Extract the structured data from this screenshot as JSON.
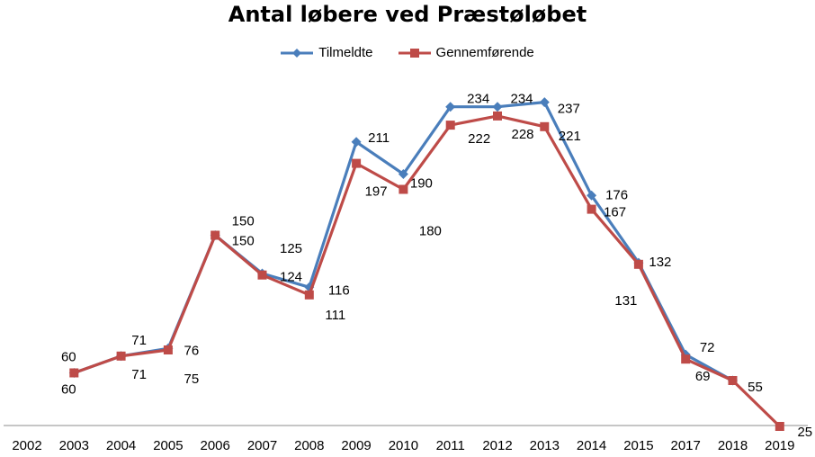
{
  "chart_data": {
    "type": "line",
    "title": "Antal løbere ved Præstøløbet",
    "categories": [
      "2002",
      "2003",
      "2004",
      "2005",
      "2006",
      "2007",
      "2008",
      "2009",
      "2010",
      "2011",
      "2012",
      "2013",
      "2014",
      "2015",
      "2017",
      "2018",
      "2019"
    ],
    "series": [
      {
        "name": "Tilmeldte",
        "color": "#4a7ebb",
        "marker": "diamond",
        "values": [
          null,
          60,
          71,
          76,
          150,
          125,
          116,
          211,
          190,
          234,
          234,
          237,
          176,
          132,
          72,
          55,
          null
        ]
      },
      {
        "name": "Gennemførende",
        "color": "#be4b48",
        "marker": "square",
        "values": [
          null,
          60,
          71,
          75,
          150,
          124,
          111,
          197,
          180,
          222,
          228,
          221,
          167,
          131,
          69,
          55,
          25
        ]
      }
    ],
    "ylim": [
      0,
      260
    ],
    "grid": false,
    "legend": "top"
  }
}
